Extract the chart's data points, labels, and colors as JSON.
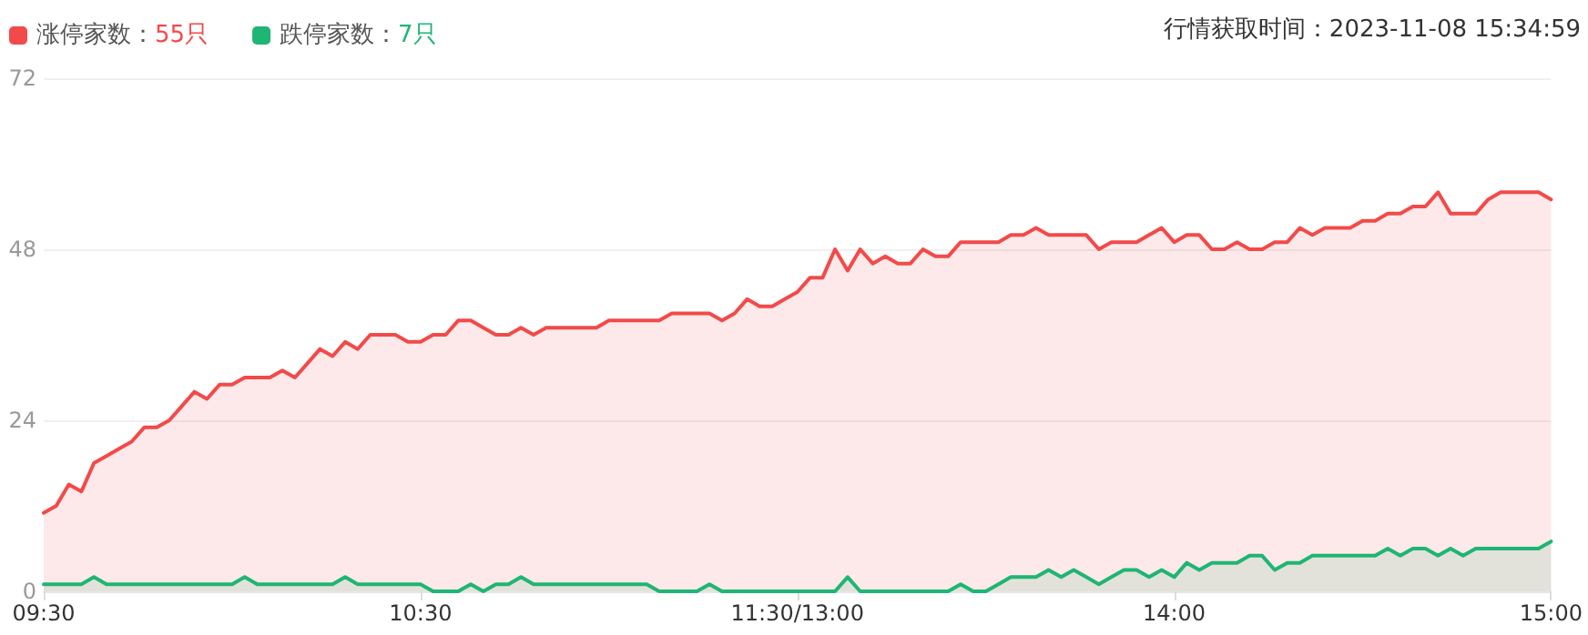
{
  "chart_data": {
    "type": "area",
    "categories": [
      "09:30",
      null,
      null,
      null,
      null,
      null,
      null,
      null,
      null,
      null,
      null,
      null,
      null,
      null,
      null,
      null,
      null,
      null,
      null,
      null,
      null,
      null,
      null,
      null,
      null,
      null,
      null,
      null,
      null,
      null,
      "10:30",
      null,
      null,
      null,
      null,
      null,
      null,
      null,
      null,
      null,
      null,
      null,
      null,
      null,
      null,
      null,
      null,
      null,
      null,
      null,
      null,
      null,
      null,
      null,
      null,
      null,
      null,
      null,
      null,
      null,
      "11:30/13:00",
      null,
      null,
      null,
      null,
      null,
      null,
      null,
      null,
      null,
      null,
      null,
      null,
      null,
      null,
      null,
      null,
      null,
      null,
      null,
      null,
      null,
      null,
      null,
      null,
      null,
      null,
      null,
      null,
      null,
      "14:00",
      null,
      null,
      null,
      null,
      null,
      null,
      null,
      null,
      null,
      null,
      null,
      null,
      null,
      null,
      null,
      null,
      null,
      null,
      null,
      null,
      null,
      null,
      null,
      null,
      null,
      null,
      null,
      null,
      null,
      "15:00"
    ],
    "series": [
      {
        "name": "涨停家数：55只",
        "color": "#f24a4a",
        "values": [
          11,
          12,
          15,
          14,
          18,
          19,
          20,
          21,
          23,
          23,
          24,
          26,
          28,
          27,
          29,
          29,
          30,
          30,
          30,
          31,
          30,
          32,
          34,
          33,
          35,
          34,
          36,
          36,
          36,
          35,
          35,
          36,
          36,
          38,
          38,
          37,
          36,
          36,
          37,
          36,
          37,
          37,
          37,
          37,
          37,
          38,
          38,
          38,
          38,
          38,
          39,
          39,
          39,
          39,
          38,
          39,
          41,
          40,
          40,
          41,
          42,
          44,
          44,
          48,
          45,
          48,
          46,
          47,
          46,
          46,
          48,
          47,
          47,
          49,
          49,
          49,
          49,
          50,
          50,
          51,
          50,
          50,
          50,
          50,
          48,
          49,
          49,
          49,
          50,
          51,
          49,
          50,
          50,
          48,
          48,
          49,
          48,
          48,
          49,
          49,
          51,
          50,
          51,
          51,
          51,
          52,
          52,
          53,
          53,
          54,
          54,
          56,
          53,
          53,
          53,
          55,
          56,
          56,
          56,
          56,
          55
        ]
      },
      {
        "name": "跌停家数：7只",
        "color": "#1fb574",
        "values": [
          1,
          1,
          1,
          1,
          2,
          1,
          1,
          1,
          1,
          1,
          1,
          1,
          1,
          1,
          1,
          1,
          2,
          1,
          1,
          1,
          1,
          1,
          1,
          1,
          2,
          1,
          1,
          1,
          1,
          1,
          1,
          0,
          0,
          0,
          1,
          0,
          1,
          1,
          2,
          1,
          1,
          1,
          1,
          1,
          1,
          1,
          1,
          1,
          1,
          0,
          0,
          0,
          0,
          1,
          0,
          0,
          0,
          0,
          0,
          0,
          0,
          0,
          0,
          0,
          2,
          0,
          0,
          0,
          0,
          0,
          0,
          0,
          0,
          1,
          0,
          0,
          1,
          2,
          2,
          2,
          3,
          2,
          3,
          2,
          1,
          2,
          3,
          3,
          2,
          3,
          2,
          4,
          3,
          4,
          4,
          4,
          5,
          5,
          3,
          4,
          4,
          5,
          5,
          5,
          5,
          5,
          5,
          6,
          5,
          6,
          6,
          5,
          6,
          5,
          6,
          6,
          6,
          6,
          6,
          6,
          7
        ]
      }
    ],
    "ylim": [
      0,
      72
    ],
    "yticks": [
      0,
      24,
      48,
      72
    ],
    "grid": "y",
    "legend": "top left",
    "marker": "none",
    "line_style": "solid",
    "annotations": [
      "行情获取时间：2023-11-08 15:34:59"
    ]
  }
}
